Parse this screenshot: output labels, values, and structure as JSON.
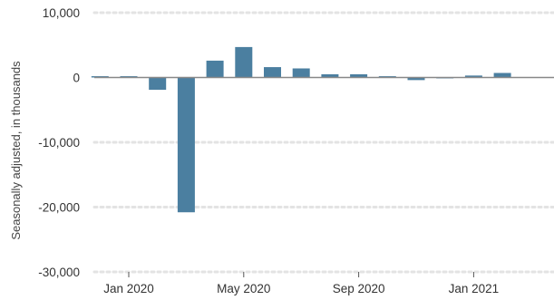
{
  "chart_data": {
    "type": "bar",
    "ylabel": "Seasonally adjusted, in thousands",
    "xlabel": "",
    "ylim": [
      -30000,
      10000
    ],
    "y_ticks": [
      10000,
      0,
      -10000,
      -20000,
      -30000
    ],
    "y_tick_labels": [
      "10,000",
      "0",
      "-10,000",
      "-20,000",
      "-30,000"
    ],
    "x_tick_labels": [
      {
        "label": "Jan 2020",
        "category_index": 1
      },
      {
        "label": "May 2020",
        "category_index": 5
      },
      {
        "label": "Sep 2020",
        "category_index": 9
      },
      {
        "label": "Jan 2021",
        "category_index": 13
      }
    ],
    "categories": [
      "Dec 2019",
      "Jan 2020",
      "Feb 2020",
      "Mar 2020",
      "Apr 2020",
      "May 2020",
      "Jun 2020",
      "Jul 2020",
      "Aug 2020",
      "Sep 2020",
      "Oct 2020",
      "Nov 2020",
      "Dec 2020",
      "Jan 2021",
      "Feb 2021",
      "Mar 2021"
    ],
    "values": [
      200,
      200,
      -1900,
      -20800,
      2600,
      4700,
      1600,
      1400,
      500,
      500,
      200,
      -400,
      -100,
      300,
      700,
      null
    ],
    "bar_color": "#4b7fa0",
    "zero_line_color": "#888888",
    "grid": true,
    "grid_style": "dotted",
    "grid_color": "#e3e3e3",
    "tick_label_color": "#333333"
  }
}
